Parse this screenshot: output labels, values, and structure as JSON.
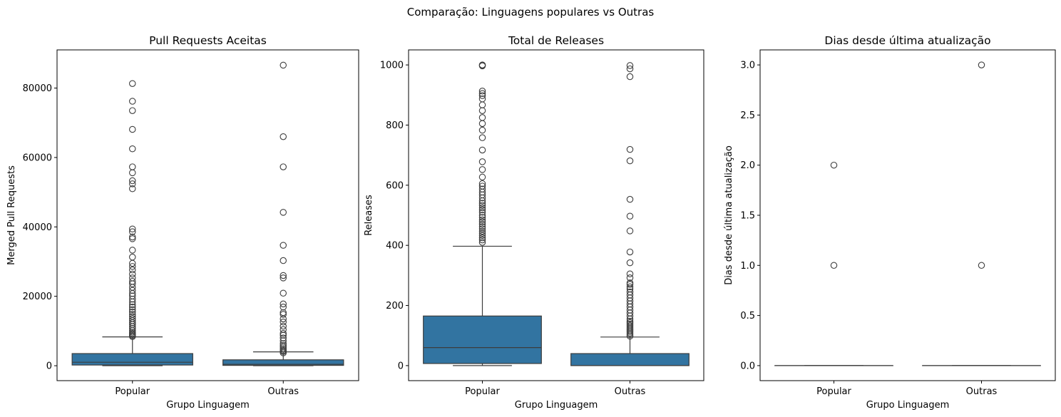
{
  "figure": {
    "suptitle": "Comparação: Linguagens populares vs Outras"
  },
  "colors": {
    "box_fill": "#3274a1",
    "box_edge": "#3d3d3d",
    "axes": "#000000",
    "outlier_edge": "#3d3d3d"
  },
  "chart_data": [
    {
      "type": "box",
      "title": "Pull Requests Aceitas",
      "xlabel": "Grupo Linguagem",
      "ylabel": "Merged Pull Requests",
      "categories": [
        "Popular",
        "Outras"
      ],
      "ylim": [
        -4300,
        91000
      ],
      "yticks": [
        0,
        20000,
        40000,
        60000,
        80000
      ],
      "ytick_labels": [
        "0",
        "20000",
        "40000",
        "60000",
        "80000"
      ],
      "grid": false,
      "boxes": [
        {
          "category": "Popular",
          "whisker_low": 0,
          "q1": 200,
          "median": 1000,
          "q3": 3500,
          "whisker_high": 8300,
          "outliers": [
            8400,
            8700,
            9000,
            9300,
            9700,
            10200,
            10800,
            11300,
            11900,
            12400,
            13000,
            13600,
            14200,
            14800,
            15500,
            16200,
            16900,
            17600,
            18400,
            19200,
            20100,
            20800,
            21700,
            22600,
            23600,
            24300,
            25300,
            26400,
            27600,
            28600,
            29500,
            31300,
            33300,
            36600,
            37100,
            38600,
            39400,
            51000,
            52400,
            53300,
            55600,
            57300,
            62500,
            68100,
            73500,
            76200,
            81300
          ]
        },
        {
          "category": "Outras",
          "whisker_low": 0,
          "q1": 100,
          "median": 400,
          "q3": 1700,
          "whisker_high": 4000,
          "outliers": [
            3700,
            4100,
            4400,
            4900,
            5400,
            5900,
            6400,
            7200,
            8000,
            8800,
            9300,
            10400,
            11400,
            12600,
            13500,
            14800,
            15300,
            16900,
            17800,
            20900,
            25300,
            26000,
            30300,
            34700,
            44200,
            57300,
            66000,
            86600
          ]
        }
      ]
    },
    {
      "type": "box",
      "title": "Total de Releases",
      "xlabel": "Grupo Linguagem",
      "ylabel": "Releases",
      "categories": [
        "Popular",
        "Outras"
      ],
      "ylim": [
        -50,
        1050
      ],
      "yticks": [
        0,
        200,
        400,
        600,
        800,
        1000
      ],
      "ytick_labels": [
        "0",
        "200",
        "400",
        "600",
        "800",
        "1000"
      ],
      "grid": false,
      "boxes": [
        {
          "category": "Popular",
          "whisker_low": 0,
          "q1": 7,
          "median": 60,
          "q3": 165,
          "whisker_high": 397,
          "outliers": [
            410,
            418,
            425,
            433,
            440,
            447,
            455,
            462,
            470,
            478,
            485,
            493,
            500,
            510,
            518,
            525,
            533,
            540,
            548,
            558,
            568,
            577,
            587,
            597,
            605,
            627,
            652,
            678,
            717,
            758,
            783,
            805,
            825,
            848,
            867,
            887,
            898,
            905,
            913,
            997,
            999,
            1000
          ]
        },
        {
          "category": "Outras",
          "whisker_low": 0,
          "q1": 0,
          "median": 0,
          "q3": 40,
          "whisker_high": 95,
          "outliers": [
            98,
            103,
            108,
            113,
            118,
            123,
            128,
            133,
            138,
            143,
            148,
            155,
            165,
            175,
            185,
            195,
            205,
            215,
            225,
            235,
            245,
            255,
            262,
            270,
            275,
            292,
            305,
            342,
            378,
            448,
            497,
            553,
            681,
            719,
            961,
            987,
            998
          ]
        }
      ]
    },
    {
      "type": "box",
      "title": "Dias desde última atualização",
      "xlabel": "Grupo Linguagem",
      "ylabel": "Dias desde última atualização",
      "categories": [
        "Popular",
        "Outras"
      ],
      "ylim": [
        -0.15,
        3.15
      ],
      "yticks": [
        0.0,
        0.5,
        1.0,
        1.5,
        2.0,
        2.5,
        3.0
      ],
      "ytick_labels": [
        "0.0",
        "0.5",
        "1.0",
        "1.5",
        "2.0",
        "2.5",
        "3.0"
      ],
      "grid": false,
      "boxes": [
        {
          "category": "Popular",
          "whisker_low": 0,
          "q1": 0,
          "median": 0,
          "q3": 0,
          "whisker_high": 0,
          "outliers": [
            1.0,
            2.0
          ]
        },
        {
          "category": "Outras",
          "whisker_low": 0,
          "q1": 0,
          "median": 0,
          "q3": 0,
          "whisker_high": 0,
          "outliers": [
            1.0,
            3.0
          ]
        }
      ]
    }
  ]
}
